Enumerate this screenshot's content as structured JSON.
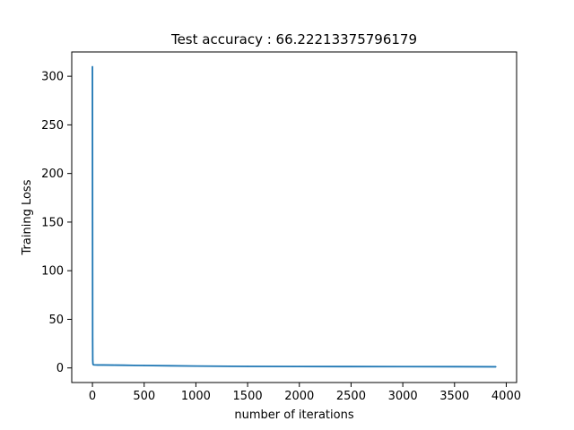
{
  "chart_data": {
    "type": "line",
    "title": "Test accuracy : 66.22213375796179",
    "xlabel": "number of iterations",
    "ylabel": "Training Loss",
    "xlim": [
      -200,
      4100
    ],
    "ylim": [
      -15,
      325
    ],
    "xticks": [
      0,
      500,
      1000,
      1500,
      2000,
      2500,
      3000,
      3500,
      4000
    ],
    "yticks": [
      0,
      50,
      100,
      150,
      200,
      250,
      300
    ],
    "grid": false,
    "legend": false,
    "series": [
      {
        "color": "#1f77b4",
        "x": [
          0,
          1,
          2,
          3,
          5,
          10,
          50,
          100,
          200,
          300,
          400,
          500,
          750,
          1000,
          1500,
          2000,
          2500,
          3000,
          3500,
          3900
        ],
        "y": [
          310,
          150,
          30,
          8,
          4,
          3.2,
          3.0,
          3.0,
          2.9,
          2.8,
          2.6,
          2.5,
          2.2,
          1.9,
          1.6,
          1.5,
          1.4,
          1.35,
          1.3,
          1.2
        ]
      }
    ]
  }
}
